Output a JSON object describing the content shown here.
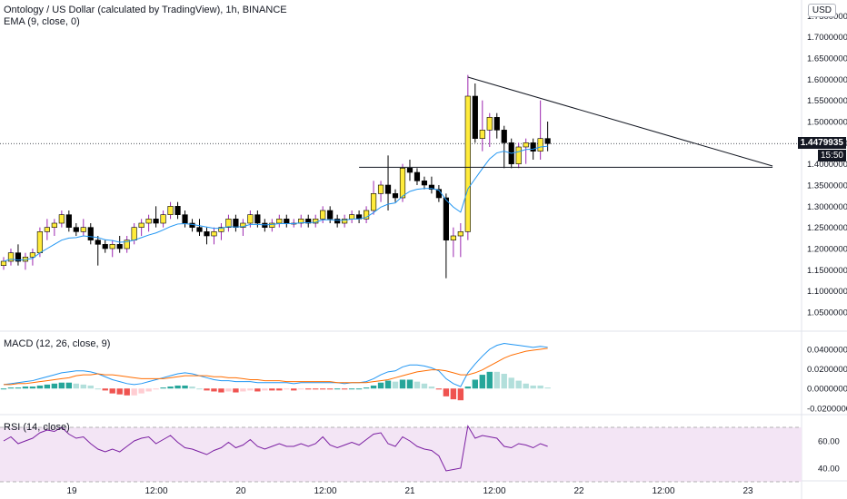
{
  "header": {
    "symbol_line": "Ontology / US Dollar (calculated by TradingView), 1h, BINANCE",
    "ema_line": "EMA (9, close, 0)",
    "currency_button": "USD"
  },
  "price_axis": {
    "ticks": [
      "1.7500000",
      "1.7000000",
      "1.6500000",
      "1.6000000",
      "1.5500000",
      "1.5000000",
      "1.4500000",
      "1.4000000",
      "1.3500000",
      "1.3000000",
      "1.2500000",
      "1.2000000",
      "1.1500000",
      "1.1000000",
      "1.0500000"
    ],
    "last_price": "1.4479935",
    "countdown": "15:50"
  },
  "macd_panel": {
    "label": "MACD (12, 26, close, 9)",
    "ticks": [
      "0.0400000",
      "0.0200000",
      "0.0000000",
      "-0.0200000"
    ]
  },
  "rsi_panel": {
    "label": "RSI (14, close)",
    "ticks": [
      "60.00",
      "40.00"
    ]
  },
  "time_axis": {
    "ticks": [
      "19",
      "12:00",
      "20",
      "12:00",
      "21",
      "12:00",
      "22",
      "12:00",
      "23"
    ]
  },
  "colors": {
    "bull": "#ffeb3b",
    "bear": "#000000",
    "ema": "#2196f3",
    "macd": "#2196f3",
    "signal": "#ff6d00",
    "rsi": "#7b1fa2",
    "rsi_band": "#f3e5f5"
  },
  "chart_data": [
    {
      "type": "candlestick",
      "ylim": [
        1.02,
        1.77
      ],
      "x_index_range": [
        -0.5,
        110
      ],
      "candles": [
        {
          "o": 1.16,
          "h": 1.18,
          "l": 1.15,
          "c": 1.17
        },
        {
          "o": 1.17,
          "h": 1.2,
          "l": 1.16,
          "c": 1.19
        },
        {
          "o": 1.19,
          "h": 1.21,
          "l": 1.16,
          "c": 1.17
        },
        {
          "o": 1.17,
          "h": 1.19,
          "l": 1.15,
          "c": 1.18
        },
        {
          "o": 1.18,
          "h": 1.2,
          "l": 1.16,
          "c": 1.19
        },
        {
          "o": 1.19,
          "h": 1.25,
          "l": 1.18,
          "c": 1.24
        },
        {
          "o": 1.24,
          "h": 1.27,
          "l": 1.22,
          "c": 1.25
        },
        {
          "o": 1.25,
          "h": 1.27,
          "l": 1.23,
          "c": 1.26
        },
        {
          "o": 1.26,
          "h": 1.29,
          "l": 1.25,
          "c": 1.28
        },
        {
          "o": 1.28,
          "h": 1.29,
          "l": 1.24,
          "c": 1.25
        },
        {
          "o": 1.25,
          "h": 1.26,
          "l": 1.23,
          "c": 1.24
        },
        {
          "o": 1.24,
          "h": 1.27,
          "l": 1.23,
          "c": 1.25
        },
        {
          "o": 1.25,
          "h": 1.26,
          "l": 1.21,
          "c": 1.22
        },
        {
          "o": 1.22,
          "h": 1.23,
          "l": 1.16,
          "c": 1.21
        },
        {
          "o": 1.21,
          "h": 1.22,
          "l": 1.19,
          "c": 1.2
        },
        {
          "o": 1.2,
          "h": 1.22,
          "l": 1.18,
          "c": 1.21
        },
        {
          "o": 1.21,
          "h": 1.23,
          "l": 1.19,
          "c": 1.2
        },
        {
          "o": 1.2,
          "h": 1.23,
          "l": 1.19,
          "c": 1.22
        },
        {
          "o": 1.22,
          "h": 1.26,
          "l": 1.21,
          "c": 1.25
        },
        {
          "o": 1.25,
          "h": 1.27,
          "l": 1.23,
          "c": 1.26
        },
        {
          "o": 1.26,
          "h": 1.28,
          "l": 1.24,
          "c": 1.27
        },
        {
          "o": 1.27,
          "h": 1.3,
          "l": 1.25,
          "c": 1.26
        },
        {
          "o": 1.26,
          "h": 1.29,
          "l": 1.25,
          "c": 1.28
        },
        {
          "o": 1.28,
          "h": 1.31,
          "l": 1.27,
          "c": 1.3
        },
        {
          "o": 1.3,
          "h": 1.31,
          "l": 1.27,
          "c": 1.28
        },
        {
          "o": 1.28,
          "h": 1.29,
          "l": 1.25,
          "c": 1.26
        },
        {
          "o": 1.26,
          "h": 1.27,
          "l": 1.24,
          "c": 1.25
        },
        {
          "o": 1.25,
          "h": 1.27,
          "l": 1.23,
          "c": 1.24
        },
        {
          "o": 1.24,
          "h": 1.25,
          "l": 1.21,
          "c": 1.23
        },
        {
          "o": 1.23,
          "h": 1.25,
          "l": 1.21,
          "c": 1.24
        },
        {
          "o": 1.24,
          "h": 1.26,
          "l": 1.22,
          "c": 1.25
        },
        {
          "o": 1.25,
          "h": 1.28,
          "l": 1.24,
          "c": 1.27
        },
        {
          "o": 1.27,
          "h": 1.28,
          "l": 1.24,
          "c": 1.25
        },
        {
          "o": 1.25,
          "h": 1.27,
          "l": 1.23,
          "c": 1.26
        },
        {
          "o": 1.26,
          "h": 1.29,
          "l": 1.25,
          "c": 1.28
        },
        {
          "o": 1.28,
          "h": 1.29,
          "l": 1.25,
          "c": 1.26
        },
        {
          "o": 1.26,
          "h": 1.27,
          "l": 1.24,
          "c": 1.25
        },
        {
          "o": 1.25,
          "h": 1.27,
          "l": 1.24,
          "c": 1.26
        },
        {
          "o": 1.26,
          "h": 1.28,
          "l": 1.25,
          "c": 1.27
        },
        {
          "o": 1.27,
          "h": 1.28,
          "l": 1.25,
          "c": 1.26
        },
        {
          "o": 1.26,
          "h": 1.27,
          "l": 1.25,
          "c": 1.26
        },
        {
          "o": 1.26,
          "h": 1.28,
          "l": 1.25,
          "c": 1.27
        },
        {
          "o": 1.27,
          "h": 1.28,
          "l": 1.25,
          "c": 1.26
        },
        {
          "o": 1.26,
          "h": 1.28,
          "l": 1.25,
          "c": 1.27
        },
        {
          "o": 1.27,
          "h": 1.3,
          "l": 1.26,
          "c": 1.29
        },
        {
          "o": 1.29,
          "h": 1.3,
          "l": 1.26,
          "c": 1.27
        },
        {
          "o": 1.27,
          "h": 1.28,
          "l": 1.25,
          "c": 1.26
        },
        {
          "o": 1.26,
          "h": 1.28,
          "l": 1.25,
          "c": 1.27
        },
        {
          "o": 1.27,
          "h": 1.29,
          "l": 1.26,
          "c": 1.28
        },
        {
          "o": 1.28,
          "h": 1.29,
          "l": 1.26,
          "c": 1.27
        },
        {
          "o": 1.27,
          "h": 1.3,
          "l": 1.26,
          "c": 1.29
        },
        {
          "o": 1.29,
          "h": 1.36,
          "l": 1.28,
          "c": 1.33
        },
        {
          "o": 1.33,
          "h": 1.36,
          "l": 1.31,
          "c": 1.35
        },
        {
          "o": 1.35,
          "h": 1.42,
          "l": 1.29,
          "c": 1.33
        },
        {
          "o": 1.33,
          "h": 1.34,
          "l": 1.31,
          "c": 1.32
        },
        {
          "o": 1.32,
          "h": 1.4,
          "l": 1.31,
          "c": 1.39
        },
        {
          "o": 1.39,
          "h": 1.41,
          "l": 1.36,
          "c": 1.38
        },
        {
          "o": 1.38,
          "h": 1.39,
          "l": 1.35,
          "c": 1.36
        },
        {
          "o": 1.36,
          "h": 1.37,
          "l": 1.34,
          "c": 1.35
        },
        {
          "o": 1.35,
          "h": 1.37,
          "l": 1.33,
          "c": 1.34
        },
        {
          "o": 1.34,
          "h": 1.35,
          "l": 1.31,
          "c": 1.32
        },
        {
          "o": 1.32,
          "h": 1.33,
          "l": 1.13,
          "c": 1.22
        },
        {
          "o": 1.22,
          "h": 1.25,
          "l": 1.18,
          "c": 1.23
        },
        {
          "o": 1.23,
          "h": 1.26,
          "l": 1.18,
          "c": 1.24
        },
        {
          "o": 1.24,
          "h": 1.61,
          "l": 1.22,
          "c": 1.56
        },
        {
          "o": 1.56,
          "h": 1.59,
          "l": 1.45,
          "c": 1.46
        },
        {
          "o": 1.46,
          "h": 1.55,
          "l": 1.43,
          "c": 1.48
        },
        {
          "o": 1.48,
          "h": 1.52,
          "l": 1.44,
          "c": 1.51
        },
        {
          "o": 1.51,
          "h": 1.52,
          "l": 1.46,
          "c": 1.48
        },
        {
          "o": 1.48,
          "h": 1.49,
          "l": 1.39,
          "c": 1.45
        },
        {
          "o": 1.45,
          "h": 1.46,
          "l": 1.39,
          "c": 1.4
        },
        {
          "o": 1.4,
          "h": 1.45,
          "l": 1.39,
          "c": 1.44
        },
        {
          "o": 1.44,
          "h": 1.46,
          "l": 1.4,
          "c": 1.45
        },
        {
          "o": 1.45,
          "h": 1.46,
          "l": 1.41,
          "c": 1.43
        },
        {
          "o": 1.43,
          "h": 1.55,
          "l": 1.41,
          "c": 1.46
        },
        {
          "o": 1.46,
          "h": 1.5,
          "l": 1.43,
          "c": 1.448
        }
      ],
      "ema": [
        1.17,
        1.175,
        1.173,
        1.174,
        1.177,
        1.19,
        1.2,
        1.21,
        1.22,
        1.225,
        1.226,
        1.23,
        1.228,
        1.226,
        1.221,
        1.219,
        1.215,
        1.216,
        1.22,
        1.226,
        1.232,
        1.237,
        1.244,
        1.252,
        1.258,
        1.259,
        1.257,
        1.254,
        1.251,
        1.248,
        1.248,
        1.252,
        1.251,
        1.252,
        1.257,
        1.257,
        1.256,
        1.257,
        1.259,
        1.259,
        1.259,
        1.261,
        1.261,
        1.262,
        1.268,
        1.268,
        1.267,
        1.267,
        1.27,
        1.27,
        1.274,
        1.285,
        1.298,
        1.305,
        1.308,
        1.324,
        1.335,
        1.34,
        1.342,
        1.342,
        1.338,
        1.315,
        1.298,
        1.286,
        1.341,
        1.365,
        1.389,
        1.412,
        1.426,
        1.43,
        1.425,
        1.429,
        1.434,
        1.435,
        1.44,
        1.442
      ],
      "trendlines": [
        {
          "from": {
            "i": 64,
            "y": 1.605
          },
          "to": {
            "i": 106,
            "y": 1.395
          }
        },
        {
          "from": {
            "i": 49,
            "y": 1.392
          },
          "to": {
            "i": 106,
            "y": 1.392
          }
        }
      ],
      "last_price": 1.4479935
    },
    {
      "type": "macd",
      "ylim": [
        -0.022,
        0.052
      ],
      "macd": [
        0.004,
        0.005,
        0.006,
        0.007,
        0.008,
        0.01,
        0.012,
        0.014,
        0.016,
        0.017,
        0.018,
        0.018,
        0.017,
        0.015,
        0.012,
        0.009,
        0.007,
        0.005,
        0.004,
        0.005,
        0.007,
        0.009,
        0.011,
        0.013,
        0.015,
        0.016,
        0.015,
        0.013,
        0.011,
        0.009,
        0.008,
        0.008,
        0.007,
        0.007,
        0.007,
        0.006,
        0.006,
        0.006,
        0.006,
        0.006,
        0.005,
        0.006,
        0.006,
        0.006,
        0.006,
        0.006,
        0.006,
        0.005,
        0.006,
        0.006,
        0.007,
        0.01,
        0.014,
        0.017,
        0.018,
        0.022,
        0.024,
        0.024,
        0.023,
        0.021,
        0.018,
        0.01,
        0.005,
        0.002,
        0.016,
        0.025,
        0.033,
        0.04,
        0.044,
        0.046,
        0.045,
        0.044,
        0.043,
        0.042,
        0.043,
        0.042
      ],
      "signal": [
        0.004,
        0.004,
        0.005,
        0.005,
        0.006,
        0.007,
        0.008,
        0.009,
        0.01,
        0.011,
        0.013,
        0.014,
        0.014,
        0.015,
        0.014,
        0.014,
        0.013,
        0.012,
        0.011,
        0.01,
        0.01,
        0.01,
        0.01,
        0.011,
        0.012,
        0.013,
        0.013,
        0.013,
        0.013,
        0.012,
        0.012,
        0.011,
        0.011,
        0.01,
        0.009,
        0.009,
        0.008,
        0.008,
        0.008,
        0.007,
        0.007,
        0.007,
        0.007,
        0.007,
        0.007,
        0.007,
        0.006,
        0.006,
        0.006,
        0.006,
        0.006,
        0.007,
        0.008,
        0.009,
        0.011,
        0.013,
        0.015,
        0.017,
        0.018,
        0.019,
        0.019,
        0.018,
        0.016,
        0.014,
        0.014,
        0.016,
        0.019,
        0.023,
        0.027,
        0.031,
        0.034,
        0.036,
        0.038,
        0.039,
        0.04,
        0.041
      ]
    },
    {
      "type": "rsi",
      "ylim": [
        32,
        76
      ],
      "bands": [
        30,
        70
      ],
      "values": [
        60,
        63,
        58,
        60,
        62,
        66,
        68,
        67,
        70,
        65,
        62,
        63,
        58,
        54,
        52,
        54,
        52,
        56,
        60,
        62,
        63,
        58,
        61,
        64,
        59,
        55,
        54,
        52,
        50,
        53,
        55,
        59,
        55,
        57,
        61,
        56,
        54,
        56,
        58,
        56,
        56,
        58,
        56,
        58,
        63,
        57,
        55,
        57,
        59,
        57,
        61,
        65,
        66,
        58,
        56,
        63,
        60,
        56,
        54,
        53,
        49,
        38,
        39,
        40,
        71,
        62,
        64,
        63,
        62,
        56,
        55,
        58,
        57,
        55,
        58,
        56
      ]
    }
  ]
}
